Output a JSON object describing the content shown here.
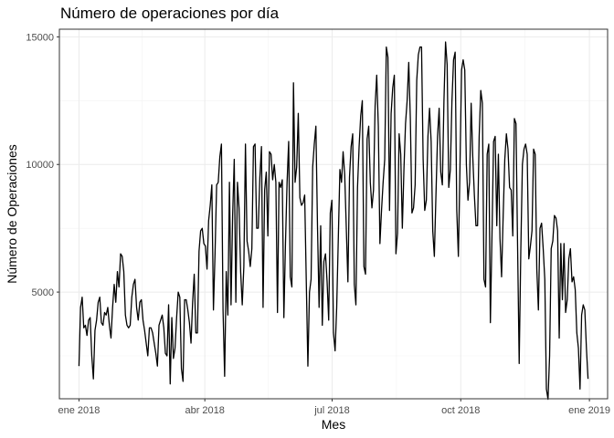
{
  "chart_data": {
    "type": "line",
    "title": "Número de operaciones por día",
    "xlabel": "Mes",
    "ylabel": "Número de Operaciones",
    "x_start": "2018-01-01",
    "x_end": "2018-12-31",
    "xlim": [
      "2017-12-18",
      "2019-01-14"
    ],
    "ylim": [
      820,
      15300
    ],
    "x_ticks": [
      {
        "label": "ene 2018",
        "date": "2018-01-01"
      },
      {
        "label": "abr 2018",
        "date": "2018-04-01"
      },
      {
        "label": "jul 2018",
        "date": "2018-07-01"
      },
      {
        "label": "oct 2018",
        "date": "2018-10-01"
      },
      {
        "label": "ene 2019",
        "date": "2019-01-01"
      }
    ],
    "y_ticks": [
      5000,
      10000,
      15000
    ],
    "y_tick_labels": [
      "5000",
      "10000",
      "15000"
    ],
    "grid": true,
    "series": [
      {
        "color": "#000000",
        "values": [
          2100,
          4400,
          4800,
          3600,
          3700,
          3300,
          3900,
          4000,
          2500,
          1600,
          3500,
          3900,
          4600,
          4800,
          3800,
          3700,
          4200,
          4100,
          4400,
          3700,
          3200,
          4400,
          5300,
          4600,
          5800,
          5200,
          6500,
          6400,
          5800,
          4100,
          3700,
          3600,
          3700,
          4800,
          5300,
          5500,
          4400,
          3900,
          4600,
          4700,
          3900,
          3500,
          3000,
          2500,
          3600,
          3600,
          3400,
          3000,
          2600,
          2100,
          3700,
          3900,
          4100,
          3600,
          2600,
          2500,
          4500,
          1400,
          4000,
          2400,
          2800,
          4000,
          5000,
          4800,
          2000,
          1500,
          4700,
          4700,
          4300,
          3800,
          3000,
          4600,
          5700,
          3400,
          3400,
          6600,
          7400,
          7500,
          6900,
          6800,
          5900,
          7800,
          8400,
          9200,
          4300,
          6500,
          9200,
          9300,
          10300,
          10800,
          4300,
          1700,
          5800,
          4100,
          9300,
          4500,
          8000,
          10200,
          4600,
          9300,
          8300,
          5800,
          4500,
          6000,
          10800,
          7000,
          6600,
          6000,
          6700,
          10700,
          10800,
          7500,
          7500,
          9500,
          10700,
          4400,
          9000,
          9700,
          7200,
          10500,
          10400,
          9400,
          10000,
          9300,
          4200,
          9300,
          9100,
          9400,
          4000,
          6900,
          9300,
          10900,
          5600,
          5200,
          13200,
          9300,
          9900,
          12000,
          8700,
          8400,
          8500,
          8800,
          5400,
          2100,
          5000,
          5500,
          9900,
          10800,
          11500,
          7600,
          4400,
          7600,
          3700,
          6200,
          6500,
          5400,
          3900,
          8100,
          8600,
          3400,
          2700,
          4400,
          7100,
          9800,
          9300,
          10500,
          9600,
          7500,
          5400,
          9500,
          10700,
          11200,
          5300,
          4500,
          9100,
          10700,
          11900,
          12500,
          6000,
          5700,
          11000,
          11500,
          9300,
          8300,
          9000,
          12300,
          13500,
          11500,
          6900,
          8200,
          9300,
          10200,
          14600,
          14200,
          8200,
          12000,
          13000,
          13500,
          6500,
          7300,
          11200,
          10400,
          7500,
          9800,
          11600,
          12500,
          14000,
          11800,
          8100,
          8300,
          9200,
          13300,
          14300,
          14600,
          14600,
          10200,
          8200,
          8600,
          11100,
          12200,
          10900,
          7400,
          6400,
          8800,
          11100,
          12200,
          9700,
          9200,
          12500,
          14800,
          13900,
          9100,
          9800,
          12500,
          14100,
          14400,
          8200,
          6400,
          9900,
          13700,
          14100,
          13700,
          10000,
          8600,
          9300,
          12400,
          10300,
          8800,
          7600,
          7600,
          11100,
          12900,
          12400,
          5500,
          5200,
          10400,
          10800,
          3800,
          7200,
          10900,
          11100,
          7600,
          10400,
          7100,
          5600,
          8000,
          10200,
          11200,
          10600,
          9100,
          9000,
          7200,
          11800,
          11600,
          6800,
          2200,
          6600,
          10000,
          10600,
          10800,
          10400,
          6300,
          6800,
          7400,
          10600,
          10400,
          5900,
          4300,
          7500,
          7700,
          6700,
          5500,
          1200,
          800,
          2500,
          6700,
          7000,
          8000,
          7900,
          7400,
          3200,
          6900,
          4700,
          6900,
          4200,
          4700,
          6300,
          6700,
          5400,
          5600,
          5100,
          3400,
          2800,
          1200,
          4100,
          4500,
          4300,
          2800,
          1600
        ]
      }
    ]
  }
}
